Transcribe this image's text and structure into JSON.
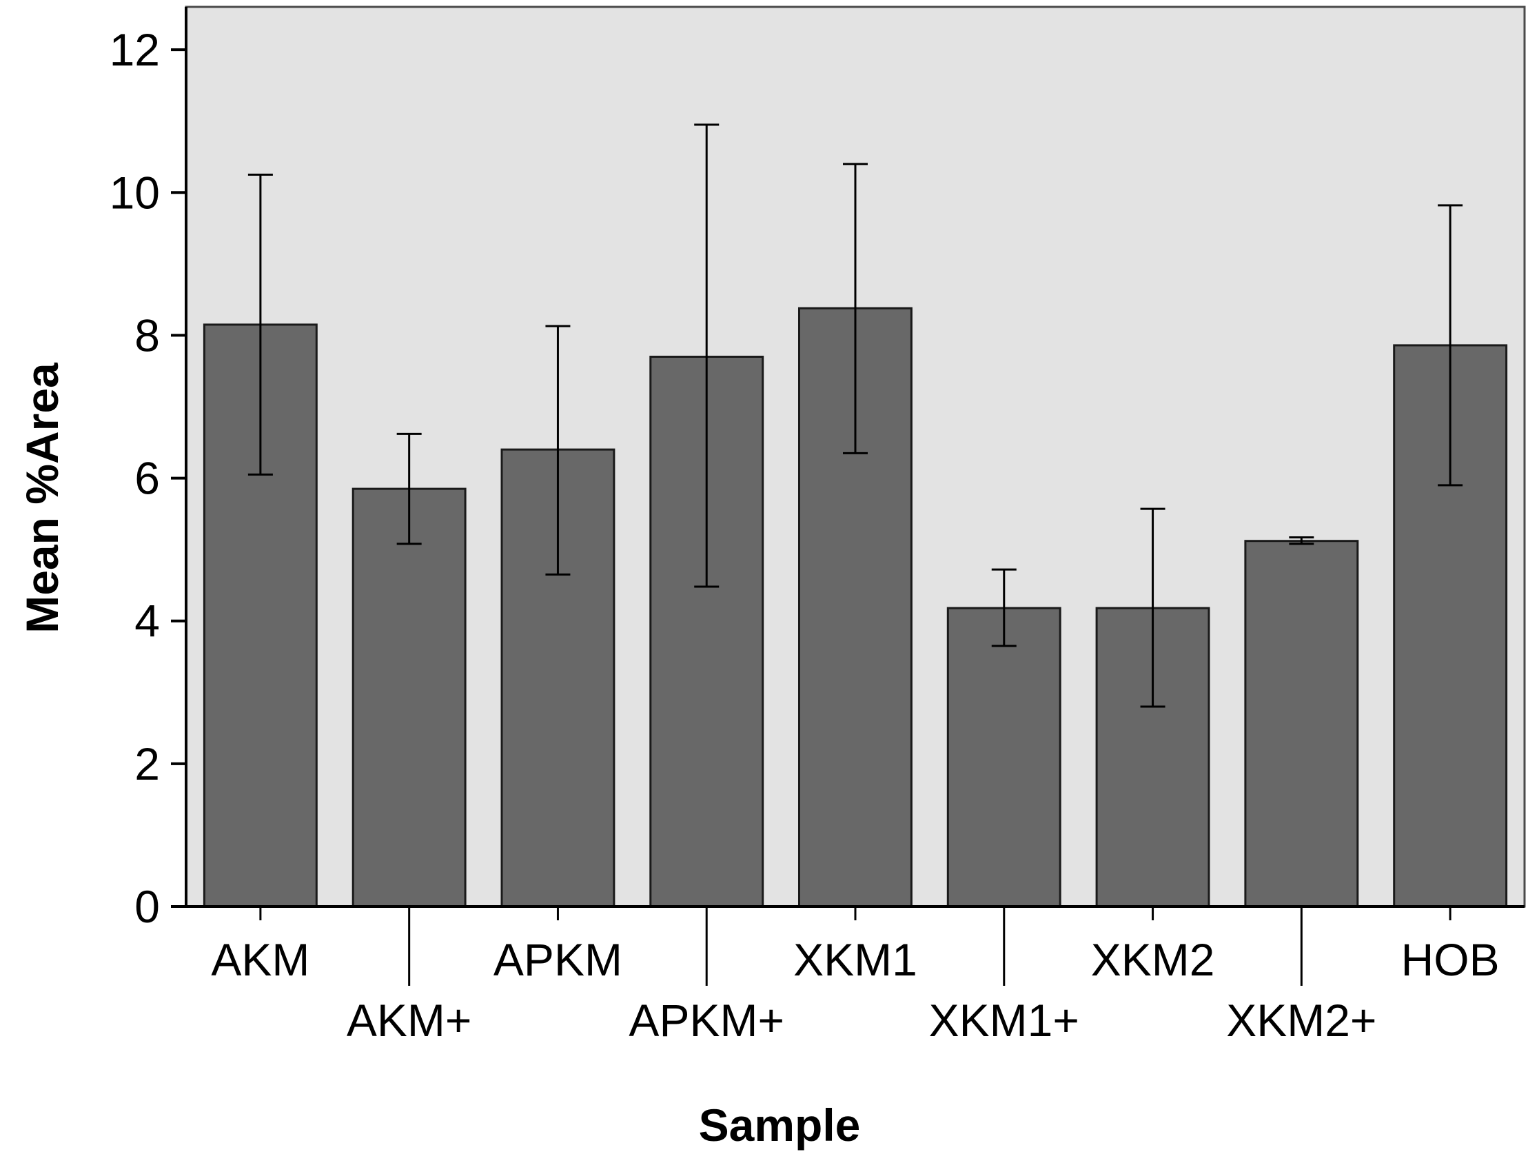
{
  "chart_data": {
    "type": "bar",
    "title": "",
    "xlabel": "Sample",
    "ylabel": "Mean %Area",
    "categories": [
      "AKM",
      "AKM+",
      "APKM",
      "APKM+",
      "XKM1",
      "XKM1+",
      "XKM2",
      "XKM2+",
      "HOB"
    ],
    "values": [
      8.15,
      5.85,
      6.4,
      7.7,
      8.38,
      4.18,
      4.18,
      5.12,
      7.86
    ],
    "error_bars": {
      "lower": [
        6.05,
        5.08,
        4.65,
        4.48,
        6.35,
        3.65,
        2.8,
        5.08,
        5.9
      ],
      "upper": [
        10.25,
        6.62,
        8.13,
        10.95,
        10.4,
        4.72,
        5.57,
        5.17,
        9.82
      ]
    },
    "ylim": [
      0,
      12.6
    ],
    "yticks": [
      0,
      2,
      4,
      6,
      8,
      10,
      12
    ],
    "grid": false,
    "legend": "none",
    "colors": {
      "bar_fill": "#686868",
      "bar_stroke": "#1a1a1a",
      "plot_background": "#e3e3e3",
      "axis": "#000000"
    }
  }
}
